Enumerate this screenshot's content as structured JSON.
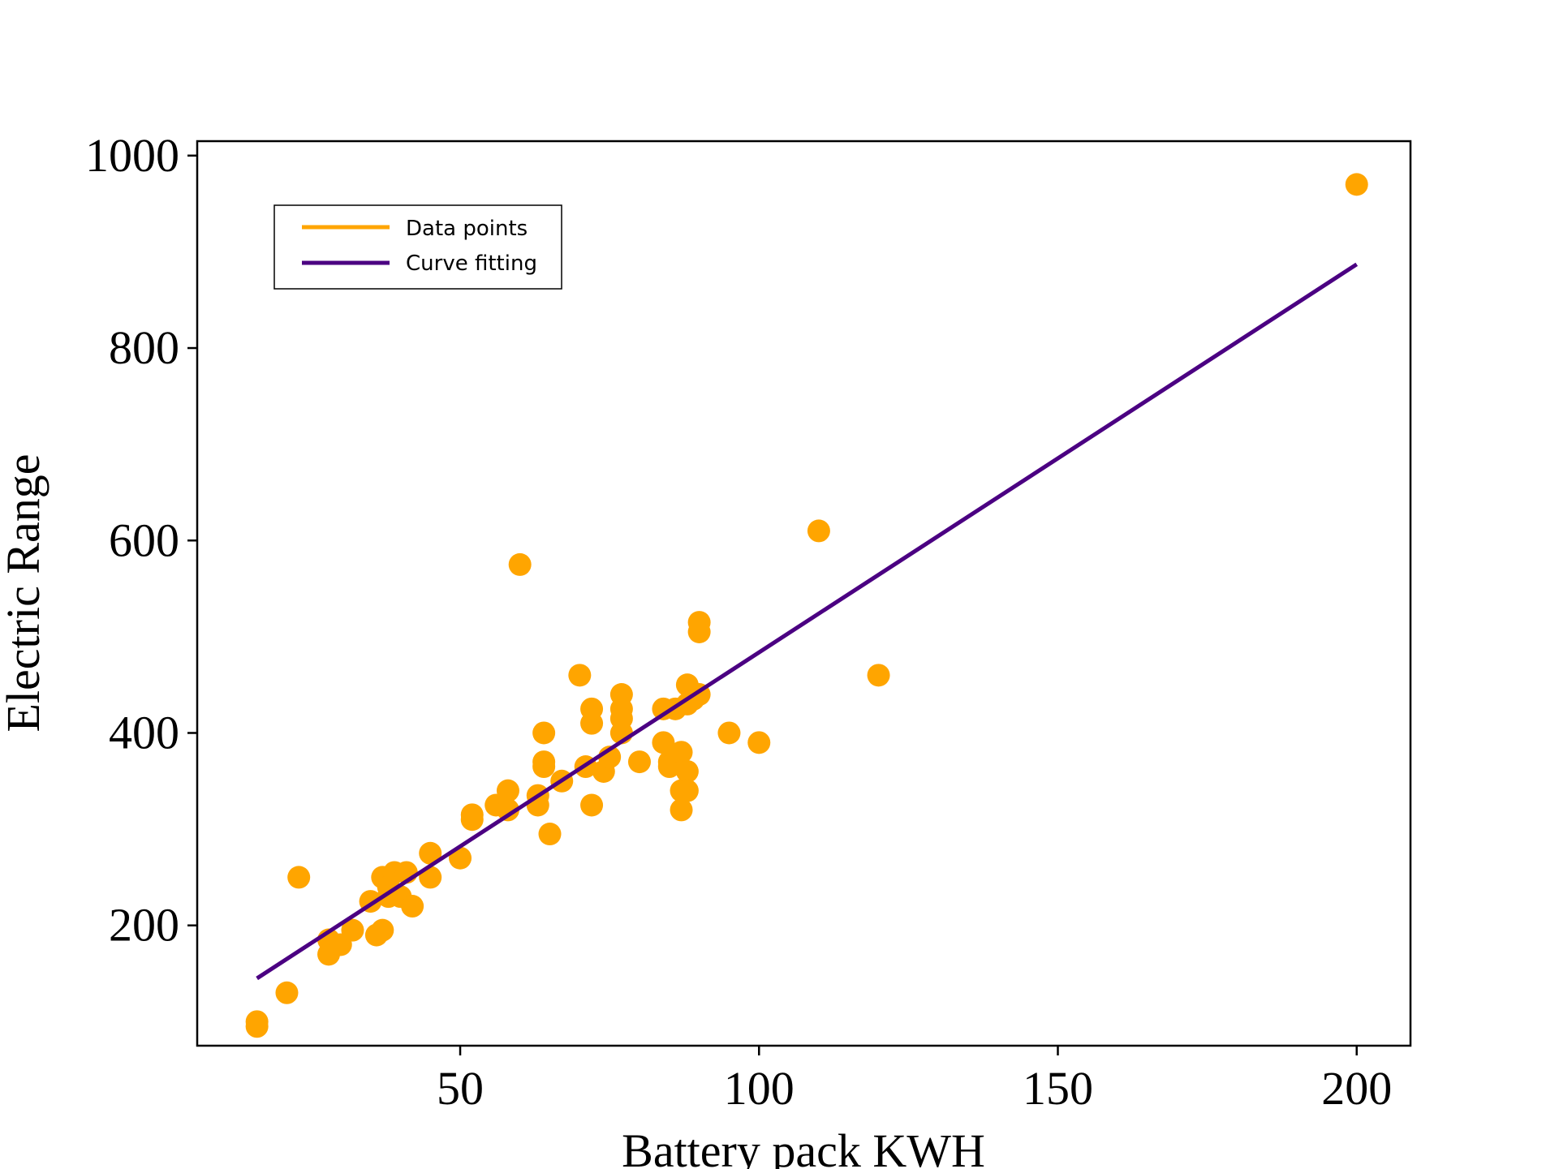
{
  "chart_data": {
    "type": "scatter",
    "title": "",
    "xlabel": "Battery pack KWH",
    "ylabel": "Electric Range",
    "xlim": [
      6,
      209
    ],
    "ylim": [
      75,
      1015
    ],
    "xticks": [
      50,
      100,
      150,
      200
    ],
    "yticks": [
      200,
      400,
      600,
      800,
      1000
    ],
    "grid": false,
    "legend_position": "top-left",
    "series": [
      {
        "name": "Data points",
        "kind": "scatter",
        "color": "#FFA500",
        "points": [
          [
            16,
            100
          ],
          [
            16,
            95
          ],
          [
            21,
            130
          ],
          [
            23,
            250
          ],
          [
            28,
            185
          ],
          [
            28,
            170
          ],
          [
            30,
            180
          ],
          [
            32,
            195
          ],
          [
            35,
            225
          ],
          [
            36,
            190
          ],
          [
            37,
            195
          ],
          [
            37,
            250
          ],
          [
            38,
            240
          ],
          [
            38,
            230
          ],
          [
            39,
            255
          ],
          [
            40,
            230
          ],
          [
            41,
            255
          ],
          [
            42,
            220
          ],
          [
            45,
            275
          ],
          [
            45,
            250
          ],
          [
            50,
            270
          ],
          [
            52,
            315
          ],
          [
            52,
            310
          ],
          [
            56,
            325
          ],
          [
            58,
            340
          ],
          [
            58,
            320
          ],
          [
            60,
            575
          ],
          [
            63,
            325
          ],
          [
            63,
            335
          ],
          [
            64,
            400
          ],
          [
            64,
            370
          ],
          [
            64,
            365
          ],
          [
            65,
            295
          ],
          [
            67,
            350
          ],
          [
            70,
            460
          ],
          [
            71,
            365
          ],
          [
            72,
            325
          ],
          [
            72,
            410
          ],
          [
            72,
            425
          ],
          [
            74,
            360
          ],
          [
            75,
            375
          ],
          [
            77,
            440
          ],
          [
            77,
            425
          ],
          [
            77,
            415
          ],
          [
            77,
            400
          ],
          [
            80,
            370
          ],
          [
            84,
            425
          ],
          [
            84,
            390
          ],
          [
            85,
            370
          ],
          [
            85,
            365
          ],
          [
            86,
            425
          ],
          [
            87,
            380
          ],
          [
            87,
            320
          ],
          [
            87,
            340
          ],
          [
            88,
            450
          ],
          [
            88,
            360
          ],
          [
            88,
            340
          ],
          [
            88,
            430
          ],
          [
            89,
            435
          ],
          [
            90,
            515
          ],
          [
            90,
            505
          ],
          [
            90,
            440
          ],
          [
            95,
            400
          ],
          [
            100,
            390
          ],
          [
            110,
            610
          ],
          [
            120,
            460
          ],
          [
            200,
            970
          ]
        ]
      },
      {
        "name": "Curve fitting",
        "kind": "line",
        "color": "#4B0082",
        "points": [
          [
            16,
            145
          ],
          [
            200,
            887
          ]
        ]
      }
    ]
  }
}
